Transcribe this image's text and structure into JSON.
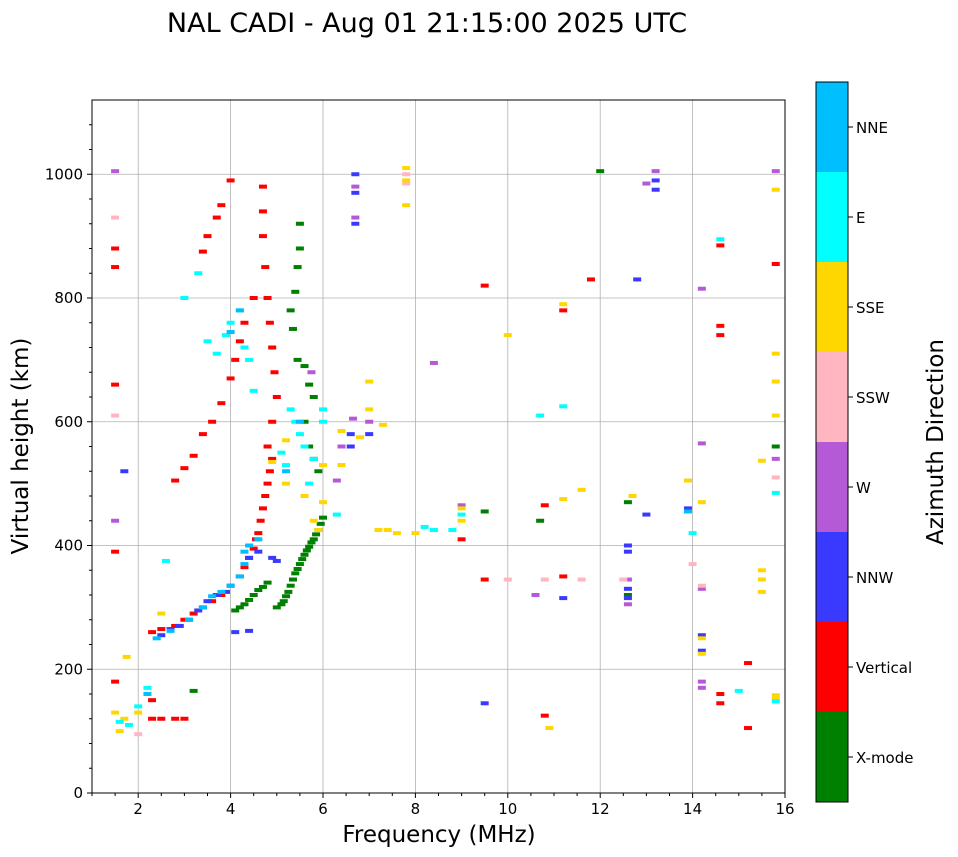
{
  "chart_data": {
    "type": "scatter",
    "title": "NAL CADI - Aug 01 21:15:00 2025 UTC",
    "xlabel": "Frequency (MHz)",
    "ylabel": "Virtual height (km)",
    "xlim": [
      1,
      16
    ],
    "ylim": [
      0,
      1120
    ],
    "xticks": [
      2,
      4,
      6,
      8,
      10,
      12,
      14,
      16
    ],
    "yticks": [
      0,
      200,
      400,
      600,
      800,
      1000
    ],
    "grid": true,
    "colorbar": {
      "label": "Azimuth Direction",
      "categories": [
        "X-mode",
        "Vertical",
        "NNW",
        "W",
        "SSW",
        "SSE",
        "E",
        "NNE"
      ],
      "colors": [
        "#008000",
        "#ff0000",
        "#3a3aff",
        "#b55ad6",
        "#ffb6c1",
        "#ffd700",
        "#00ffff",
        "#00bfff"
      ]
    },
    "series": [
      {
        "name": "X-mode",
        "points": [
          [
            5.0,
            300
          ],
          [
            5.1,
            305
          ],
          [
            5.15,
            310
          ],
          [
            5.2,
            318
          ],
          [
            5.25,
            325
          ],
          [
            5.3,
            335
          ],
          [
            5.35,
            345
          ],
          [
            5.4,
            355
          ],
          [
            5.45,
            362
          ],
          [
            5.5,
            370
          ],
          [
            5.55,
            378
          ],
          [
            5.6,
            385
          ],
          [
            5.65,
            392
          ],
          [
            5.7,
            398
          ],
          [
            5.75,
            405
          ],
          [
            5.8,
            410
          ],
          [
            5.85,
            418
          ],
          [
            5.9,
            425
          ],
          [
            5.95,
            435
          ],
          [
            6.0,
            445
          ],
          [
            4.1,
            295
          ],
          [
            4.2,
            300
          ],
          [
            4.3,
            305
          ],
          [
            4.4,
            312
          ],
          [
            4.5,
            320
          ],
          [
            4.6,
            328
          ],
          [
            4.7,
            333
          ],
          [
            4.8,
            340
          ],
          [
            5.5,
            920
          ],
          [
            5.5,
            880
          ],
          [
            5.45,
            850
          ],
          [
            5.4,
            810
          ],
          [
            5.3,
            780
          ],
          [
            5.35,
            750
          ],
          [
            5.45,
            700
          ],
          [
            5.6,
            690
          ],
          [
            5.7,
            660
          ],
          [
            5.8,
            640
          ],
          [
            5.6,
            600
          ],
          [
            5.7,
            560
          ],
          [
            5.8,
            540
          ],
          [
            5.9,
            520
          ],
          [
            9.5,
            455
          ],
          [
            10.7,
            440
          ],
          [
            12.6,
            470
          ],
          [
            12.6,
            320
          ],
          [
            15.8,
            560
          ],
          [
            3.2,
            165
          ],
          [
            12.0,
            1005
          ]
        ]
      },
      {
        "name": "Vertical",
        "points": [
          [
            2.3,
            260
          ],
          [
            2.5,
            265
          ],
          [
            2.8,
            270
          ],
          [
            3.0,
            280
          ],
          [
            3.2,
            290
          ],
          [
            3.4,
            300
          ],
          [
            3.6,
            310
          ],
          [
            3.8,
            320
          ],
          [
            4.0,
            335
          ],
          [
            4.2,
            350
          ],
          [
            4.3,
            365
          ],
          [
            4.4,
            380
          ],
          [
            4.5,
            395
          ],
          [
            4.55,
            410
          ],
          [
            4.6,
            420
          ],
          [
            4.65,
            440
          ],
          [
            4.7,
            460
          ],
          [
            4.75,
            480
          ],
          [
            4.8,
            500
          ],
          [
            4.85,
            520
          ],
          [
            4.9,
            540
          ],
          [
            2.8,
            505
          ],
          [
            3.0,
            525
          ],
          [
            3.2,
            545
          ],
          [
            3.4,
            580
          ],
          [
            3.6,
            600
          ],
          [
            3.8,
            630
          ],
          [
            4.0,
            670
          ],
          [
            4.1,
            700
          ],
          [
            4.2,
            730
          ],
          [
            4.3,
            760
          ],
          [
            4.5,
            800
          ],
          [
            3.4,
            875
          ],
          [
            3.5,
            900
          ],
          [
            3.7,
            930
          ],
          [
            3.8,
            950
          ],
          [
            4.0,
            990
          ],
          [
            4.7,
            980
          ],
          [
            4.7,
            940
          ],
          [
            4.7,
            900
          ],
          [
            4.75,
            850
          ],
          [
            4.8,
            800
          ],
          [
            4.85,
            760
          ],
          [
            4.9,
            720
          ],
          [
            4.95,
            680
          ],
          [
            5.0,
            640
          ],
          [
            4.9,
            600
          ],
          [
            4.8,
            560
          ],
          [
            1.5,
            880
          ],
          [
            1.5,
            850
          ],
          [
            1.5,
            660
          ],
          [
            1.5,
            390
          ],
          [
            1.5,
            180
          ],
          [
            2.3,
            150
          ],
          [
            2.3,
            120
          ],
          [
            2.5,
            120
          ],
          [
            2.8,
            120
          ],
          [
            3.0,
            120
          ],
          [
            9.0,
            410
          ],
          [
            9.5,
            345
          ],
          [
            9.5,
            820
          ],
          [
            10.8,
            465
          ],
          [
            10.8,
            125
          ],
          [
            11.2,
            350
          ],
          [
            11.2,
            780
          ],
          [
            11.8,
            830
          ],
          [
            14.6,
            885
          ],
          [
            14.6,
            755
          ],
          [
            14.6,
            740
          ],
          [
            14.6,
            160
          ],
          [
            14.6,
            145
          ],
          [
            15.2,
            210
          ],
          [
            15.2,
            105
          ],
          [
            15.8,
            855
          ]
        ]
      },
      {
        "name": "NNW",
        "points": [
          [
            2.5,
            255
          ],
          [
            2.7,
            265
          ],
          [
            2.9,
            270
          ],
          [
            3.1,
            280
          ],
          [
            3.3,
            295
          ],
          [
            3.5,
            310
          ],
          [
            3.7,
            320
          ],
          [
            3.9,
            325
          ],
          [
            4.1,
            260
          ],
          [
            4.4,
            262
          ],
          [
            4.4,
            380
          ],
          [
            4.6,
            390
          ],
          [
            4.9,
            380
          ],
          [
            5.0,
            375
          ],
          [
            6.7,
            1000
          ],
          [
            6.7,
            970
          ],
          [
            6.7,
            920
          ],
          [
            6.6,
            580
          ],
          [
            6.6,
            560
          ],
          [
            7.0,
            580
          ],
          [
            9.5,
            145
          ],
          [
            11.2,
            315
          ],
          [
            12.6,
            400
          ],
          [
            12.6,
            390
          ],
          [
            12.6,
            330
          ],
          [
            12.6,
            315
          ],
          [
            13.0,
            450
          ],
          [
            12.8,
            830
          ],
          [
            13.2,
            990
          ],
          [
            13.2,
            975
          ],
          [
            13.9,
            460
          ],
          [
            14.2,
            255
          ],
          [
            14.2,
            230
          ],
          [
            1.7,
            520
          ]
        ]
      },
      {
        "name": "W",
        "points": [
          [
            1.5,
            1005
          ],
          [
            1.5,
            440
          ],
          [
            6.7,
            980
          ],
          [
            6.7,
            930
          ],
          [
            6.4,
            560
          ],
          [
            6.3,
            505
          ],
          [
            6.65,
            605
          ],
          [
            7.0,
            600
          ],
          [
            8.4,
            695
          ],
          [
            9.0,
            465
          ],
          [
            10.6,
            320
          ],
          [
            12.6,
            345
          ],
          [
            12.6,
            305
          ],
          [
            13.2,
            1005
          ],
          [
            13.0,
            985
          ],
          [
            14.2,
            815
          ],
          [
            14.2,
            565
          ],
          [
            14.2,
            330
          ],
          [
            14.2,
            180
          ],
          [
            14.2,
            170
          ],
          [
            15.8,
            1005
          ],
          [
            15.8,
            540
          ],
          [
            5.75,
            680
          ]
        ]
      },
      {
        "name": "SSW",
        "points": [
          [
            1.5,
            930
          ],
          [
            1.5,
            610
          ],
          [
            2.0,
            95
          ],
          [
            7.8,
            1000
          ],
          [
            7.8,
            985
          ],
          [
            10.0,
            345
          ],
          [
            10.8,
            345
          ],
          [
            11.6,
            345
          ],
          [
            12.5,
            345
          ],
          [
            14.0,
            370
          ],
          [
            14.2,
            335
          ],
          [
            15.8,
            510
          ]
        ]
      },
      {
        "name": "SSE",
        "points": [
          [
            1.5,
            130
          ],
          [
            1.6,
            100
          ],
          [
            1.7,
            120
          ],
          [
            1.75,
            220
          ],
          [
            2.0,
            130
          ],
          [
            2.5,
            290
          ],
          [
            4.9,
            535
          ],
          [
            5.2,
            570
          ],
          [
            5.2,
            500
          ],
          [
            5.6,
            480
          ],
          [
            5.8,
            440
          ],
          [
            5.9,
            425
          ],
          [
            6.0,
            470
          ],
          [
            6.0,
            530
          ],
          [
            6.4,
            585
          ],
          [
            6.4,
            530
          ],
          [
            6.8,
            575
          ],
          [
            7.0,
            620
          ],
          [
            7.2,
            425
          ],
          [
            7.4,
            425
          ],
          [
            7.6,
            420
          ],
          [
            7.8,
            1010
          ],
          [
            7.8,
            990
          ],
          [
            7.8,
            950
          ],
          [
            7.0,
            665
          ],
          [
            7.3,
            595
          ],
          [
            8.0,
            420
          ],
          [
            9.0,
            460
          ],
          [
            9.0,
            440
          ],
          [
            10.0,
            740
          ],
          [
            10.9,
            105
          ],
          [
            11.2,
            790
          ],
          [
            11.2,
            475
          ],
          [
            11.6,
            490
          ],
          [
            12.7,
            480
          ],
          [
            13.9,
            505
          ],
          [
            14.2,
            470
          ],
          [
            14.2,
            250
          ],
          [
            14.2,
            225
          ],
          [
            15.5,
            537
          ],
          [
            15.5,
            360
          ],
          [
            15.5,
            345
          ],
          [
            15.5,
            325
          ],
          [
            15.8,
            975
          ],
          [
            15.8,
            710
          ],
          [
            15.8,
            665
          ],
          [
            15.8,
            610
          ],
          [
            15.8,
            158
          ],
          [
            15.8,
            152
          ]
        ]
      },
      {
        "name": "E",
        "points": [
          [
            1.6,
            115
          ],
          [
            1.8,
            110
          ],
          [
            2.0,
            140
          ],
          [
            2.2,
            170
          ],
          [
            2.6,
            375
          ],
          [
            3.0,
            800
          ],
          [
            3.3,
            840
          ],
          [
            3.5,
            730
          ],
          [
            3.7,
            710
          ],
          [
            3.9,
            740
          ],
          [
            4.0,
            760
          ],
          [
            4.2,
            780
          ],
          [
            4.3,
            720
          ],
          [
            4.4,
            700
          ],
          [
            4.5,
            650
          ],
          [
            5.1,
            550
          ],
          [
            5.2,
            530
          ],
          [
            5.3,
            620
          ],
          [
            5.4,
            600
          ],
          [
            5.5,
            580
          ],
          [
            5.6,
            560
          ],
          [
            5.7,
            500
          ],
          [
            5.8,
            540
          ],
          [
            6.0,
            600
          ],
          [
            6.0,
            620
          ],
          [
            6.3,
            450
          ],
          [
            8.2,
            430
          ],
          [
            8.4,
            425
          ],
          [
            8.8,
            425
          ],
          [
            9.0,
            450
          ],
          [
            10.7,
            610
          ],
          [
            11.2,
            625
          ],
          [
            14.0,
            420
          ],
          [
            14.6,
            895
          ],
          [
            15.0,
            165
          ],
          [
            15.8,
            485
          ],
          [
            15.8,
            148
          ]
        ]
      },
      {
        "name": "NNE",
        "points": [
          [
            2.2,
            160
          ],
          [
            2.4,
            250
          ],
          [
            2.7,
            262
          ],
          [
            3.1,
            280
          ],
          [
            3.4,
            300
          ],
          [
            3.6,
            318
          ],
          [
            3.8,
            325
          ],
          [
            4.0,
            335
          ],
          [
            4.2,
            350
          ],
          [
            4.3,
            370
          ],
          [
            4.3,
            390
          ],
          [
            4.4,
            400
          ],
          [
            4.6,
            410
          ],
          [
            4.2,
            780
          ],
          [
            4.0,
            745
          ],
          [
            5.2,
            520
          ],
          [
            5.5,
            600
          ],
          [
            13.9,
            455
          ]
        ]
      }
    ]
  }
}
